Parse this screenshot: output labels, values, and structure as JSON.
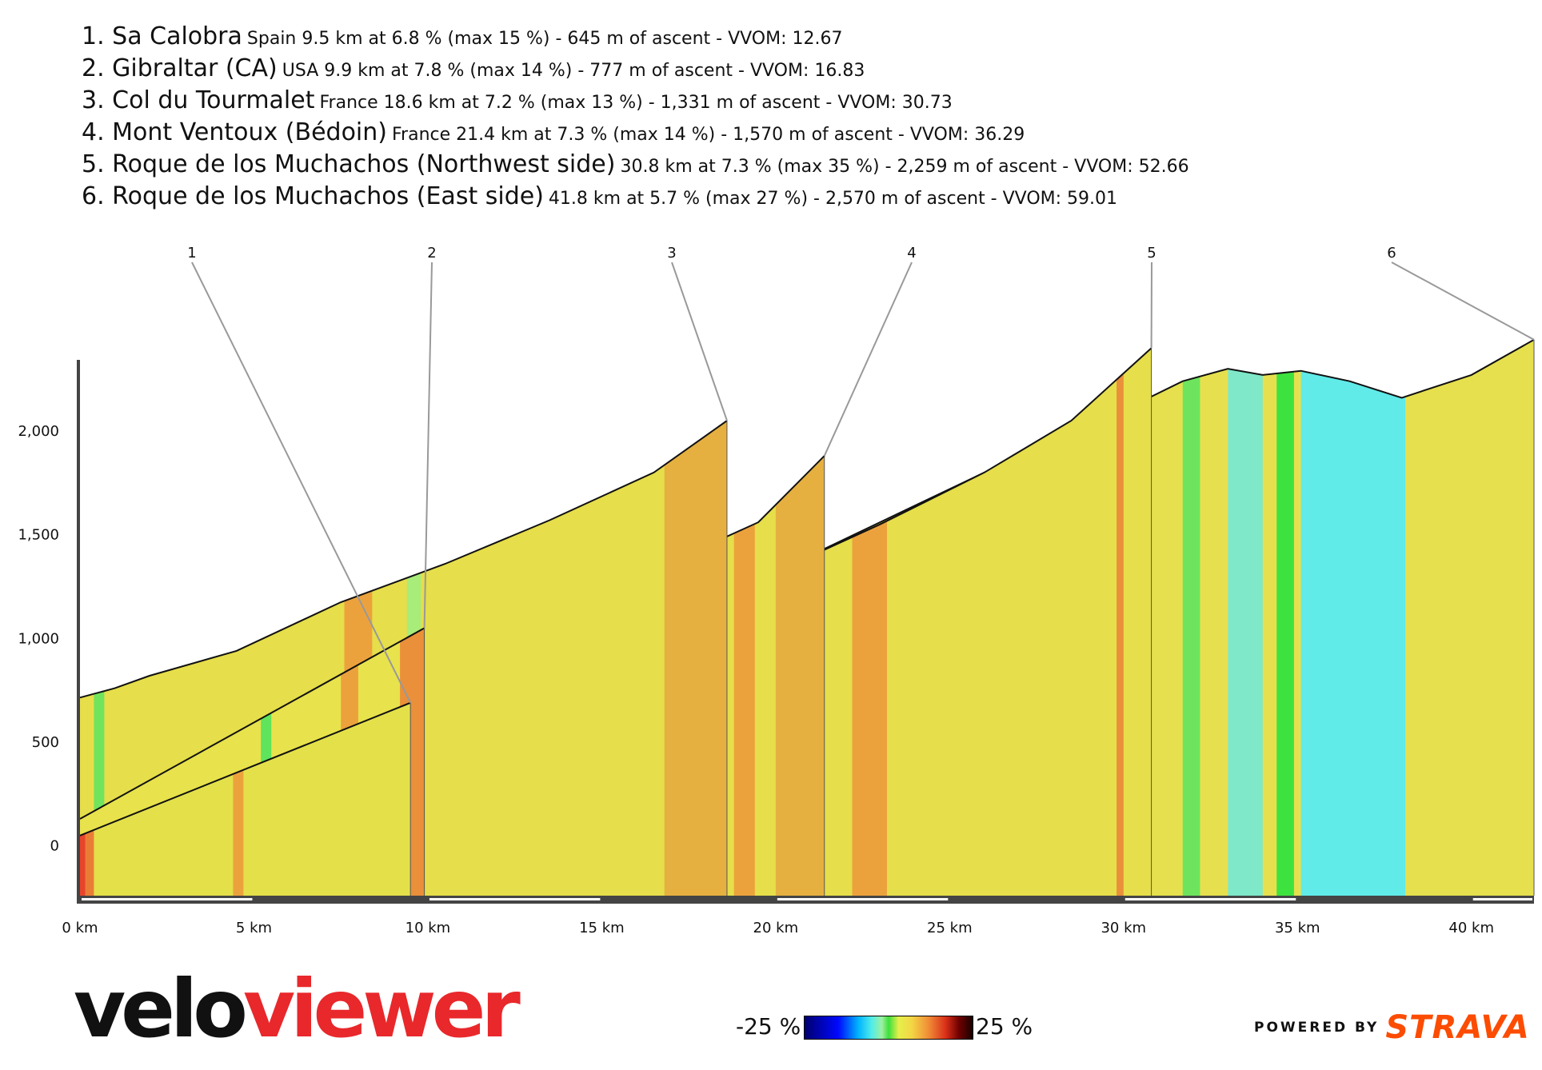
{
  "legend": [
    {
      "name": "1. Sa Calobra",
      "detail": "Spain 9.5 km at 6.8 % (max 15 %) - 645 m of ascent - VVOM: 12.67"
    },
    {
      "name": "2. Gibraltar (CA)",
      "detail": "USA 9.9 km at 7.8 % (max 14 %) - 777 m of ascent - VVOM: 16.83"
    },
    {
      "name": "3. Col du Tourmalet",
      "detail": "France 18.6 km at 7.2 % (max 13 %) - 1,331 m of ascent - VVOM: 30.73"
    },
    {
      "name": "4. Mont Ventoux (Bédoin)",
      "detail": "France 21.4 km at 7.3 % (max 14 %) - 1,570 m of ascent - VVOM: 36.29"
    },
    {
      "name": "5. Roque de los Muchachos (Northwest side)",
      "detail": "30.8 km at 7.3 % (max 35 %) - 2,259 m of ascent - VVOM: 52.66"
    },
    {
      "name": "6. Roque de los Muchachos (East side)",
      "detail": "41.8 km at 5.7 % (max 27 %) - 2,570 m of ascent - VVOM: 59.01"
    }
  ],
  "chart_data": {
    "type": "area",
    "x_unit": "km",
    "y_unit": "m",
    "xlim": [
      0,
      41.8
    ],
    "ylim": [
      -240,
      2420
    ],
    "x_ticks": [
      {
        "value": 0,
        "label": "0 km"
      },
      {
        "value": 5,
        "label": "5 km"
      },
      {
        "value": 10,
        "label": "10 km"
      },
      {
        "value": 15,
        "label": "15 km"
      },
      {
        "value": 20,
        "label": "20 km"
      },
      {
        "value": 25,
        "label": "25 km"
      },
      {
        "value": 30,
        "label": "30 km"
      },
      {
        "value": 35,
        "label": "35 km"
      },
      {
        "value": 40,
        "label": "40 km"
      }
    ],
    "y_ticks": [
      {
        "value": 0,
        "label": "0"
      },
      {
        "value": 500,
        "label": "500"
      },
      {
        "value": 1000,
        "label": "1,000"
      },
      {
        "value": 1500,
        "label": "1,500"
      },
      {
        "value": 2000,
        "label": "2,000"
      }
    ],
    "series": [
      {
        "name": "1",
        "color": "#e4e04a",
        "x": [
          0,
          9.5
        ],
        "y": [
          50,
          690
        ],
        "bands": [
          [
            0,
            0.15,
            "#e8442a"
          ],
          [
            0.15,
            0.4,
            "#ea7d36"
          ],
          [
            4.4,
            4.7,
            "#eca23c"
          ]
        ]
      },
      {
        "name": "2",
        "color": "#e8e24c",
        "x": [
          0,
          9.9
        ],
        "y": [
          130,
          1050
        ],
        "bands": [
          [
            5.2,
            5.5,
            "#5fe45c"
          ],
          [
            7.5,
            8.0,
            "#eca23c"
          ],
          [
            9.2,
            9.9,
            "#ea8f3a"
          ]
        ]
      },
      {
        "name": "3",
        "color": "#e6de4a",
        "x": [
          0,
          1.0,
          2.0,
          4.5,
          7.5,
          10.5,
          13.5,
          16.5,
          18.6
        ],
        "y": [
          715,
          760,
          820,
          940,
          1175,
          1360,
          1570,
          1800,
          2050
        ],
        "bands": [
          [
            0.4,
            0.7,
            "#70e45c"
          ],
          [
            7.6,
            8.4,
            "#eca23c"
          ],
          [
            9.4,
            9.8,
            "#a8ec7a"
          ],
          [
            16.8,
            18.6,
            "#e6b040"
          ]
        ]
      },
      {
        "name": "4",
        "color": "#e6de4a",
        "x": [
          0,
          0.5,
          2.0,
          5.0,
          8.0,
          11.0,
          14.0,
          17.0,
          19.5,
          21.4
        ],
        "y": [
          300,
          310,
          360,
          470,
          700,
          930,
          1170,
          1370,
          1560,
          1880
        ],
        "bands": [
          [
            0,
            0.5,
            "#7ae65c"
          ],
          [
            7.7,
            7.9,
            "#5fe45c"
          ],
          [
            11.0,
            11.5,
            "#eca23c"
          ],
          [
            18.8,
            19.4,
            "#eca23c"
          ],
          [
            20.0,
            21.4,
            "#e6b040"
          ]
        ]
      },
      {
        "name": "5",
        "color": "#e6de4a",
        "x": [
          0,
          3.0,
          6.0,
          9.5,
          11.0,
          14.0,
          17.0,
          20.0,
          23.0,
          26.0,
          28.5,
          30.8
        ],
        "y": [
          250,
          350,
          490,
          610,
          700,
          880,
          1100,
          1320,
          1550,
          1800,
          2050,
          2400
        ],
        "bands": [
          [
            11.1,
            11.4,
            "#3ed43e"
          ],
          [
            16.2,
            17.0,
            "#ea7a38"
          ],
          [
            22.2,
            23.2,
            "#eca23c"
          ],
          [
            29.8,
            30.0,
            "#ea8f3a"
          ]
        ]
      },
      {
        "name": "6",
        "color": "#e6e04e",
        "x": [
          0,
          3.0,
          6.0,
          9.5,
          12.0,
          15.0,
          18.0,
          21.0,
          24.0,
          27.0,
          30.0,
          31.7,
          33.0,
          34.0,
          35.1,
          36.5,
          38.0,
          40.0,
          41.8
        ],
        "y": [
          180,
          300,
          430,
          600,
          760,
          950,
          1200,
          1400,
          1640,
          1880,
          2100,
          2240,
          2300,
          2270,
          2290,
          2240,
          2160,
          2270,
          2440
        ],
        "bands": [
          [
            31.7,
            32.2,
            "#6ee45e"
          ],
          [
            33.0,
            34.0,
            "#7ee8c8"
          ],
          [
            34.4,
            34.9,
            "#3ee23e"
          ],
          [
            35.1,
            38.1,
            "#60eae8"
          ]
        ]
      }
    ]
  },
  "scale": {
    "min_label": "-25 %",
    "max_label": "25 %"
  },
  "brand": {
    "velo": "velo",
    "viewer": "viewer",
    "powered_by": "POWERED BY",
    "strava": "STRAVA"
  }
}
